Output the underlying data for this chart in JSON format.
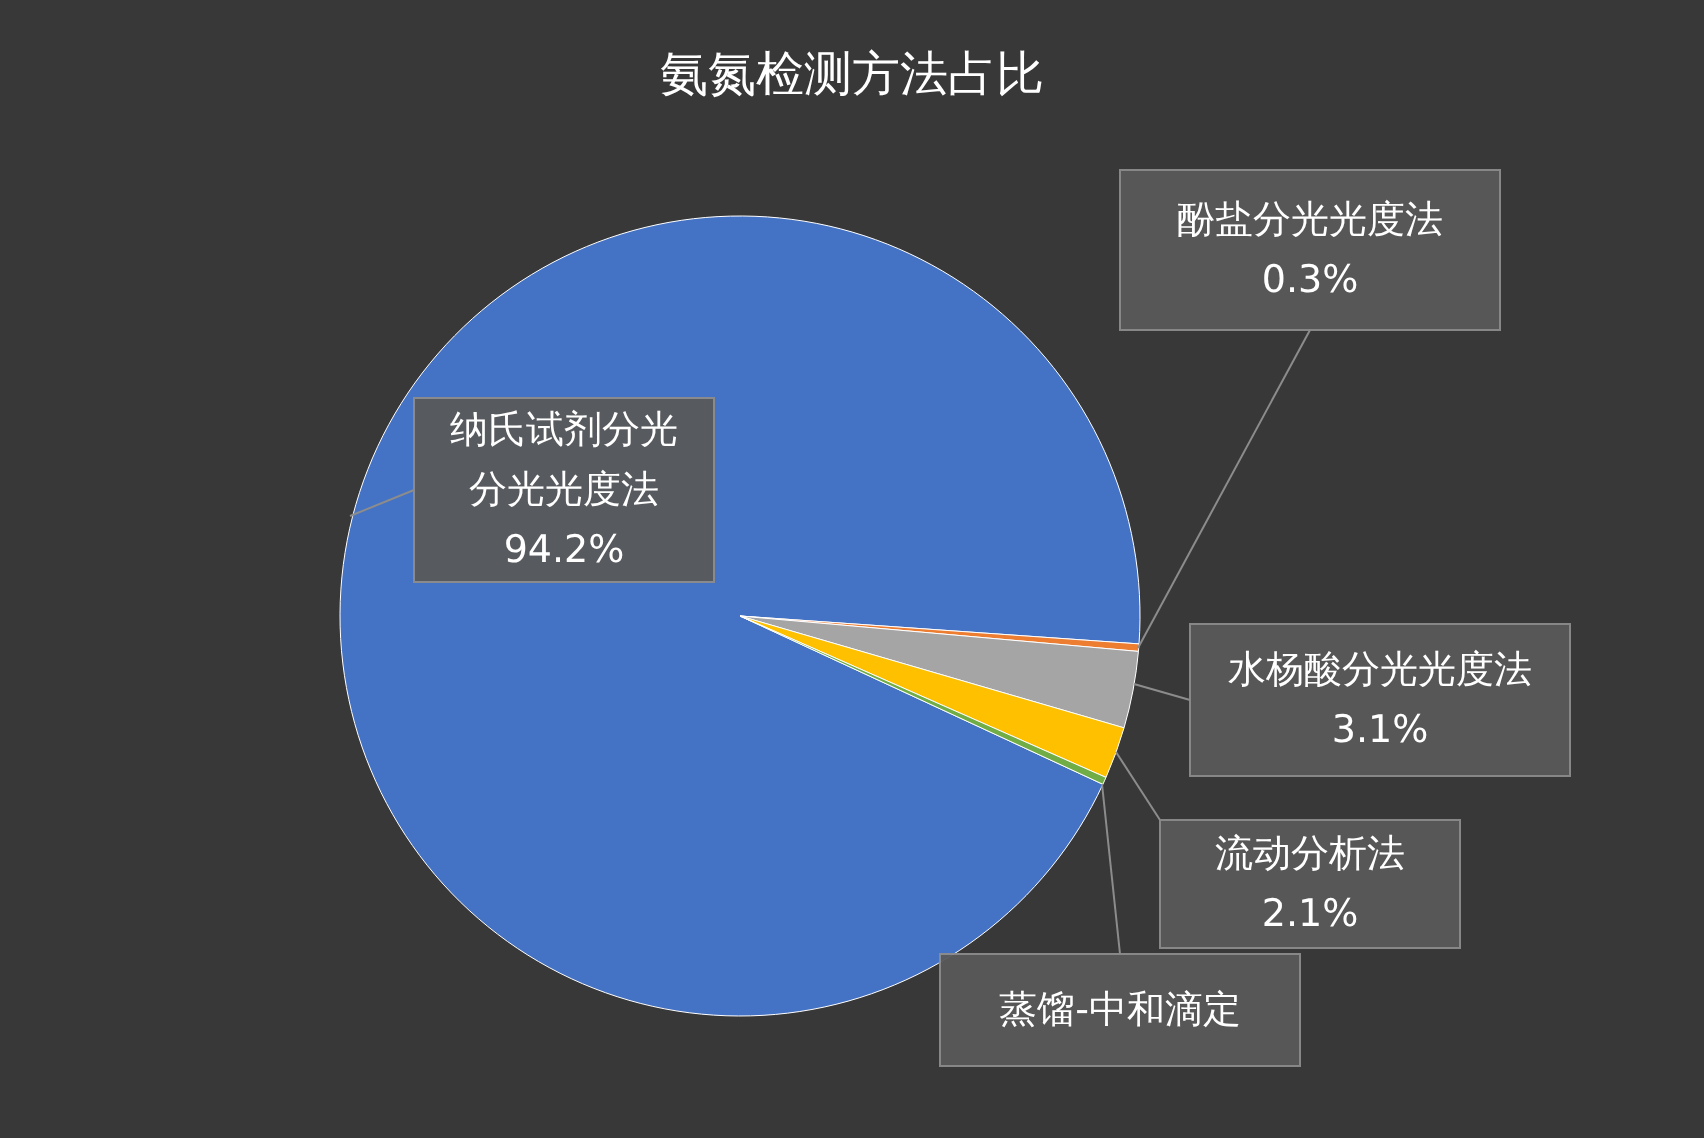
{
  "chart_data": {
    "type": "pie",
    "title": "氨氮检测方法占比",
    "categories": [
      "纳氏试剂分光分光光度法",
      "酚盐分光光度法",
      "水杨酸分光光度法",
      "流动分析法",
      "蒸馏-中和滴定"
    ],
    "values": [
      94.2,
      0.3,
      3.1,
      2.1,
      0.3
    ],
    "colors": [
      "#4472c4",
      "#ed7d31",
      "#a5a5a5",
      "#ffc000",
      "#70ad47"
    ],
    "value_labels": [
      "94.2%",
      "0.3%",
      "3.1%",
      "2.1%",
      null
    ],
    "legend": false
  }
}
